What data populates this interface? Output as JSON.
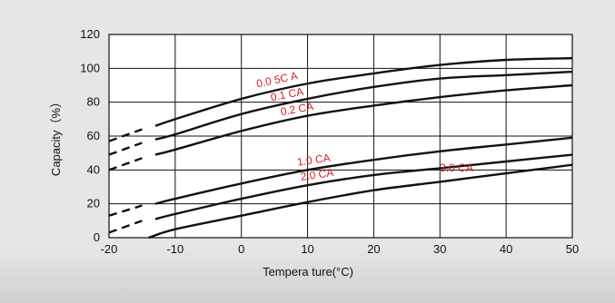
{
  "chart_data": {
    "type": "line",
    "xlabel": "Tempera ture(°C)",
    "ylabel": "Capacity（%）",
    "xlim": [
      -20,
      50
    ],
    "ylim": [
      0,
      120
    ],
    "x_ticks": [
      "-20",
      "-10",
      "0",
      "10",
      "20",
      "30",
      "40",
      "50"
    ],
    "y_ticks": [
      "0",
      "20",
      "40",
      "60",
      "80",
      "100",
      "120"
    ],
    "grid": true,
    "series": [
      {
        "name": "0.0 5C A",
        "label_angle": -12,
        "dashed": {
          "x": [
            -20,
            -15
          ],
          "y": [
            57,
            64
          ]
        },
        "solid": {
          "x": [
            -13,
            -10,
            0,
            10,
            20,
            30,
            40,
            50
          ],
          "y": [
            66,
            70,
            82,
            91,
            97,
            102,
            105,
            106
          ]
        }
      },
      {
        "name": "0.1 CA",
        "label_angle": -11,
        "dashed": {
          "x": [
            -20,
            -15
          ],
          "y": [
            49,
            56
          ]
        },
        "solid": {
          "x": [
            -13,
            -10,
            0,
            10,
            20,
            30,
            40,
            50
          ],
          "y": [
            58,
            61,
            73,
            82,
            89,
            94,
            96,
            98
          ]
        }
      },
      {
        "name": "0.2 CA",
        "label_angle": -10,
        "dashed": {
          "x": [
            -20,
            -15
          ],
          "y": [
            40,
            47
          ]
        },
        "solid": {
          "x": [
            -13,
            -10,
            0,
            10,
            20,
            30,
            40,
            50
          ],
          "y": [
            49,
            52,
            63,
            72,
            78,
            83,
            87,
            90
          ]
        }
      },
      {
        "name": "1.0 CA",
        "label_angle": -8,
        "dashed": {
          "x": [
            -20,
            -15
          ],
          "y": [
            13,
            19
          ]
        },
        "solid": {
          "x": [
            -13,
            -10,
            0,
            10,
            20,
            30,
            40,
            50
          ],
          "y": [
            20,
            23,
            32,
            40,
            46,
            51,
            55,
            59
          ]
        }
      },
      {
        "name": "2.0 CA",
        "label_angle": -8,
        "dashed": {
          "x": [
            -20,
            -15
          ],
          "y": [
            3,
            10
          ]
        },
        "solid": {
          "x": [
            -13,
            -10,
            0,
            10,
            20,
            30,
            40,
            50
          ],
          "y": [
            11,
            14,
            23,
            31,
            37,
            41,
            45,
            49
          ]
        }
      },
      {
        "name": "3.0 CA",
        "label_angle": 0,
        "dashed": null,
        "solid": {
          "x": [
            -14,
            -10,
            0,
            10,
            20,
            30,
            40,
            50
          ],
          "y": [
            0,
            5,
            13,
            21,
            28,
            33,
            38,
            43
          ]
        }
      }
    ]
  }
}
